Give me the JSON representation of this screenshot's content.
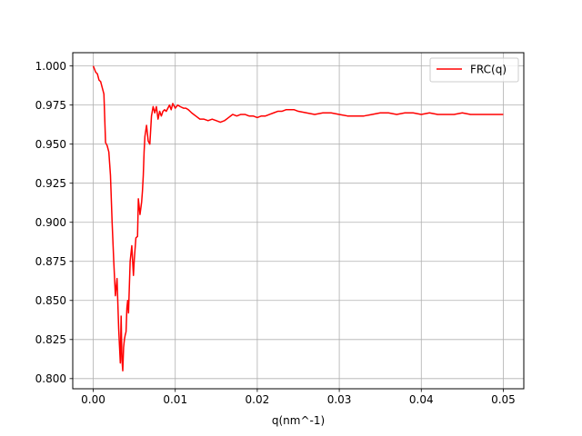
{
  "chart_data": {
    "type": "line",
    "title": "",
    "xlabel": "q(nm^-1)",
    "ylabel": "",
    "xlim": [
      -0.0025,
      0.0525
    ],
    "ylim": [
      0.7935,
      1.0085
    ],
    "grid": true,
    "legend_position": "top-right",
    "xticks": [
      0.0,
      0.01,
      0.02,
      0.03,
      0.04,
      0.05
    ],
    "xtick_labels": [
      "0.00",
      "0.01",
      "0.02",
      "0.03",
      "0.04",
      "0.05"
    ],
    "yticks": [
      0.8,
      0.825,
      0.85,
      0.875,
      0.9,
      0.925,
      0.95,
      0.975,
      1.0
    ],
    "ytick_labels": [
      "0.800",
      "0.825",
      "0.850",
      "0.875",
      "0.900",
      "0.925",
      "0.950",
      "0.975",
      "1.000"
    ],
    "series": [
      {
        "name": "FRC(q)",
        "color": "#ff0000",
        "x": [
          0.0,
          0.0003,
          0.0005,
          0.0007,
          0.0009,
          0.0011,
          0.0013,
          0.0015,
          0.0017,
          0.0019,
          0.0021,
          0.0023,
          0.0025,
          0.0027,
          0.0029,
          0.0031,
          0.0033,
          0.0034,
          0.0035,
          0.0036,
          0.0037,
          0.0038,
          0.0039,
          0.004,
          0.0041,
          0.0042,
          0.0043,
          0.0045,
          0.0047,
          0.0049,
          0.005,
          0.0052,
          0.0054,
          0.0055,
          0.0057,
          0.0059,
          0.006,
          0.0061,
          0.0062,
          0.0063,
          0.0065,
          0.0067,
          0.0069,
          0.0071,
          0.0073,
          0.0075,
          0.0077,
          0.0079,
          0.0081,
          0.0083,
          0.0085,
          0.0087,
          0.0089,
          0.0091,
          0.0093,
          0.0095,
          0.0097,
          0.01,
          0.0103,
          0.0106,
          0.011,
          0.0113,
          0.0116,
          0.012,
          0.0125,
          0.013,
          0.0135,
          0.014,
          0.0145,
          0.015,
          0.0155,
          0.016,
          0.0165,
          0.017,
          0.0175,
          0.018,
          0.0185,
          0.019,
          0.0195,
          0.02,
          0.0205,
          0.021,
          0.0215,
          0.022,
          0.0225,
          0.023,
          0.0235,
          0.024,
          0.0245,
          0.025,
          0.026,
          0.027,
          0.028,
          0.029,
          0.03,
          0.031,
          0.032,
          0.033,
          0.034,
          0.035,
          0.036,
          0.037,
          0.038,
          0.039,
          0.04,
          0.041,
          0.042,
          0.043,
          0.044,
          0.045,
          0.046,
          0.047,
          0.048,
          0.049,
          0.05
        ],
        "y": [
          1.0,
          0.996,
          0.995,
          0.991,
          0.99,
          0.986,
          0.982,
          0.951,
          0.949,
          0.945,
          0.93,
          0.9,
          0.875,
          0.853,
          0.864,
          0.832,
          0.81,
          0.84,
          0.812,
          0.805,
          0.82,
          0.825,
          0.828,
          0.83,
          0.845,
          0.85,
          0.842,
          0.875,
          0.885,
          0.866,
          0.876,
          0.89,
          0.891,
          0.915,
          0.905,
          0.913,
          0.92,
          0.93,
          0.945,
          0.955,
          0.962,
          0.952,
          0.95,
          0.968,
          0.974,
          0.97,
          0.974,
          0.966,
          0.971,
          0.968,
          0.971,
          0.972,
          0.971,
          0.973,
          0.975,
          0.972,
          0.976,
          0.973,
          0.975,
          0.974,
          0.973,
          0.973,
          0.972,
          0.97,
          0.968,
          0.966,
          0.966,
          0.965,
          0.966,
          0.965,
          0.964,
          0.965,
          0.967,
          0.969,
          0.968,
          0.969,
          0.969,
          0.968,
          0.968,
          0.967,
          0.968,
          0.968,
          0.969,
          0.97,
          0.971,
          0.971,
          0.972,
          0.972,
          0.972,
          0.971,
          0.97,
          0.969,
          0.97,
          0.97,
          0.969,
          0.968,
          0.968,
          0.968,
          0.969,
          0.97,
          0.97,
          0.969,
          0.97,
          0.97,
          0.969,
          0.97,
          0.969,
          0.969,
          0.969,
          0.97,
          0.969,
          0.969,
          0.969,
          0.969,
          0.969
        ]
      }
    ]
  }
}
